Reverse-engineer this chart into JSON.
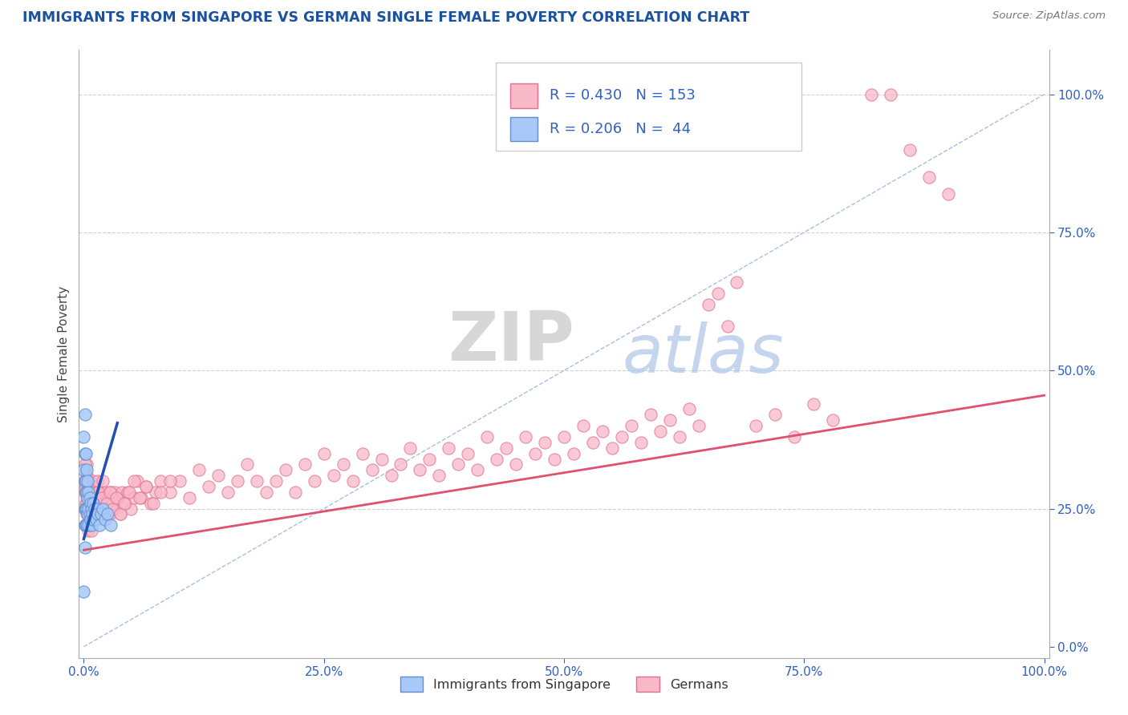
{
  "title": "IMMIGRANTS FROM SINGAPORE VS GERMAN SINGLE FEMALE POVERTY CORRELATION CHART",
  "source": "Source: ZipAtlas.com",
  "ylabel": "Single Female Poverty",
  "watermark_zip": "ZIP",
  "watermark_atlas": "atlas",
  "legend_blue_label": "Immigrants from Singapore",
  "legend_pink_label": "Germans",
  "r_blue": "0.206",
  "n_blue": "44",
  "r_pink": "0.430",
  "n_pink": "153",
  "blue_color": "#a8c8f8",
  "pink_color": "#f8b8c8",
  "blue_edge": "#6090d0",
  "pink_edge": "#e07090",
  "regression_blue_color": "#2050b0",
  "regression_pink_color": "#e05070",
  "ref_line_color": "#90b0e0",
  "title_color": "#1a52a0",
  "source_color": "#777777",
  "stats_color": "#3060c0",
  "background_color": "#ffffff",
  "grid_color": "#cccccc",
  "axis_color": "#aaaaaa",
  "tick_color": "#3060c0",
  "figsize": [
    14.06,
    8.92
  ],
  "dpi": 100
}
